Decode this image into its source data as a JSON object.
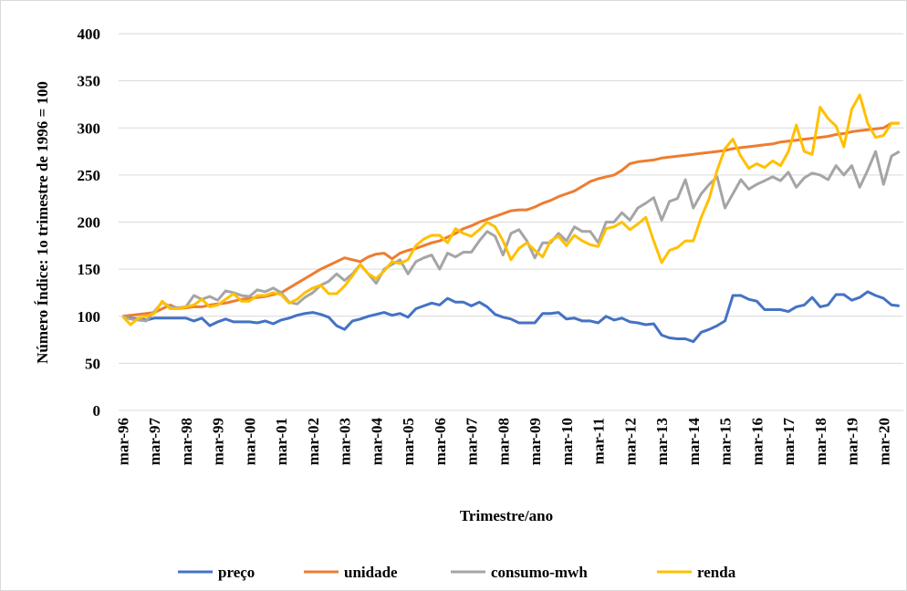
{
  "chart_data": {
    "type": "line",
    "y_label": "Número Índice: 1o trimestre de 1996 = 100",
    "x_label": "Trimestre/ano",
    "categories": [
      "mar-96",
      null,
      null,
      null,
      "mar-97",
      null,
      null,
      null,
      "mar-98",
      null,
      null,
      null,
      "mar-99",
      null,
      null,
      null,
      "mar-00",
      null,
      null,
      null,
      "mar-01",
      null,
      null,
      null,
      "mar-02",
      null,
      null,
      null,
      "mar-03",
      null,
      null,
      null,
      "mar-04",
      null,
      null,
      null,
      "mar-05",
      null,
      null,
      null,
      "mar-06",
      null,
      null,
      null,
      "mar-07",
      null,
      null,
      null,
      "mar-08",
      null,
      null,
      null,
      "mar-09",
      null,
      null,
      null,
      "mar-10",
      null,
      null,
      null,
      "mar-11",
      null,
      null,
      null,
      "mar-12",
      null,
      null,
      null,
      "mar-13",
      null,
      null,
      null,
      "mar-14",
      null,
      null,
      null,
      "mar-15",
      null,
      null,
      null,
      "mar-16",
      null,
      null,
      null,
      "mar-17",
      null,
      null,
      null,
      "mar-18",
      null,
      null,
      null,
      "mar-19",
      null,
      null,
      null,
      "mar-20",
      null,
      null
    ],
    "series": [
      {
        "name": "preço",
        "color": "#4472c4",
        "values": [
          100,
          98,
          97,
          96,
          98,
          98,
          98,
          98,
          98,
          95,
          98,
          90,
          94,
          97,
          94,
          94,
          94,
          93,
          95,
          92,
          96,
          98,
          101,
          103,
          104,
          102,
          99,
          90,
          86,
          95,
          97,
          100,
          102,
          104,
          101,
          103,
          99,
          108,
          111,
          114,
          112,
          119,
          115,
          115,
          111,
          115,
          110,
          102,
          99,
          97,
          93,
          93,
          93,
          103,
          103,
          104,
          97,
          98,
          95,
          95,
          93,
          100,
          96,
          98,
          94,
          93,
          91,
          92,
          80,
          77,
          76,
          76,
          73,
          83,
          86,
          90,
          95,
          122,
          122,
          118,
          116,
          107,
          107,
          107,
          105,
          110,
          112,
          120,
          110,
          112,
          123,
          123,
          117,
          120,
          126,
          122,
          119,
          112,
          111
        ]
      },
      {
        "name": "unidade",
        "color": "#ed7d31",
        "values": [
          100,
          101,
          102,
          103,
          104,
          108,
          112,
          108,
          109,
          110,
          110,
          112,
          113,
          114,
          116,
          118,
          119,
          120,
          121,
          123,
          125,
          130,
          135,
          140,
          145,
          150,
          154,
          158,
          162,
          160,
          158,
          163,
          166,
          167,
          161,
          167,
          170,
          172,
          175,
          178,
          180,
          184,
          188,
          193,
          196,
          200,
          203,
          206,
          209,
          212,
          213,
          213,
          216,
          220,
          223,
          227,
          230,
          233,
          238,
          243,
          246,
          248,
          250,
          255,
          262,
          264,
          265,
          266,
          268,
          269,
          270,
          271,
          272,
          273,
          274,
          275,
          276,
          278,
          279,
          280,
          281,
          282,
          283,
          285,
          286,
          287,
          288,
          289,
          290,
          291,
          293,
          294,
          296,
          297,
          298,
          299,
          300,
          305,
          305
        ]
      },
      {
        "name": "consumo-mwh",
        "color": "#a5a5a5",
        "values": [
          100,
          97,
          96,
          95,
          105,
          115,
          110,
          109,
          110,
          122,
          118,
          121,
          117,
          127,
          125,
          122,
          121,
          128,
          126,
          130,
          125,
          115,
          113,
          120,
          125,
          133,
          137,
          145,
          138,
          145,
          155,
          145,
          135,
          150,
          155,
          160,
          145,
          158,
          162,
          165,
          150,
          167,
          163,
          168,
          168,
          180,
          190,
          185,
          165,
          188,
          192,
          180,
          162,
          178,
          178,
          188,
          180,
          195,
          190,
          190,
          178,
          200,
          200,
          210,
          202,
          215,
          220,
          226,
          202,
          222,
          225,
          245,
          215,
          230,
          240,
          248,
          215,
          230,
          245,
          235,
          240,
          244,
          248,
          244,
          253,
          237,
          247,
          252,
          250,
          245,
          260,
          250,
          260,
          237,
          255,
          275,
          240,
          270,
          275
        ]
      },
      {
        "name": "renda",
        "color": "#ffc000",
        "values": [
          100,
          91,
          98,
          100,
          103,
          116,
          108,
          108,
          110,
          112,
          118,
          110,
          112,
          118,
          124,
          116,
          116,
          122,
          122,
          125,
          123,
          114,
          118,
          125,
          130,
          133,
          124,
          124,
          132,
          143,
          155,
          145,
          140,
          148,
          158,
          156,
          160,
          175,
          182,
          186,
          186,
          178,
          193,
          188,
          185,
          192,
          200,
          195,
          180,
          160,
          172,
          178,
          170,
          163,
          180,
          185,
          175,
          186,
          180,
          176,
          174,
          193,
          195,
          200,
          192,
          198,
          205,
          180,
          157,
          170,
          173,
          180,
          180,
          205,
          225,
          255,
          278,
          288,
          270,
          257,
          262,
          258,
          265,
          260,
          275,
          303,
          275,
          272,
          322,
          310,
          302,
          280,
          320,
          335,
          305,
          290,
          292,
          305,
          305
        ]
      }
    ],
    "ylim": [
      0,
      400
    ],
    "yticks": [
      0,
      50,
      100,
      150,
      200,
      250,
      300,
      350,
      400
    ],
    "grid": true,
    "legend": "bottom"
  }
}
